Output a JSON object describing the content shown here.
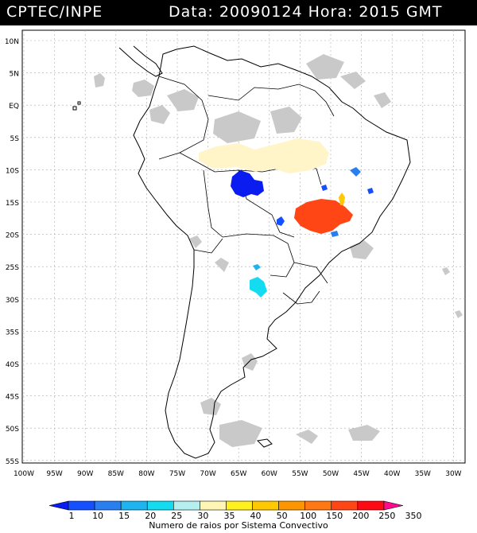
{
  "header": {
    "source": "CPTEC/INPE",
    "date_label": "Data:",
    "date_value": "20090124",
    "time_label": "Hora:",
    "time_value": "2015 GMT"
  },
  "axes": {
    "lat_labels": [
      "10N",
      "5N",
      "EQ",
      "5S",
      "10S",
      "15S",
      "20S",
      "25S",
      "30S",
      "35S",
      "40S",
      "45S",
      "50S",
      "55S"
    ],
    "lon_labels": [
      "100W",
      "95W",
      "90W",
      "85W",
      "80W",
      "75W",
      "70W",
      "65W",
      "60W",
      "55W",
      "50W",
      "45W",
      "40W",
      "35W",
      "30W"
    ]
  },
  "legend": {
    "title": "Numero de raios por Sistema Convectivo",
    "thresholds": [
      "1",
      "10",
      "15",
      "20",
      "25",
      "30",
      "35",
      "40",
      "50",
      "100",
      "150",
      "200",
      "250",
      "350"
    ],
    "colors": [
      "#0a1cf0",
      "#1450ff",
      "#2a7ff0",
      "#1eb4f0",
      "#14dcf0",
      "#b4f0f0",
      "#fff5b4",
      "#fff01e",
      "#ffc800",
      "#ff9600",
      "#ff7814",
      "#ff4614",
      "#ff0a14",
      "#ff0a8c"
    ]
  },
  "map_colors": {
    "background": "#ffffff",
    "land": "#ffffff",
    "clouds": "#c8c8c8",
    "coast": "#000000",
    "grid": "#b0b0b0"
  }
}
